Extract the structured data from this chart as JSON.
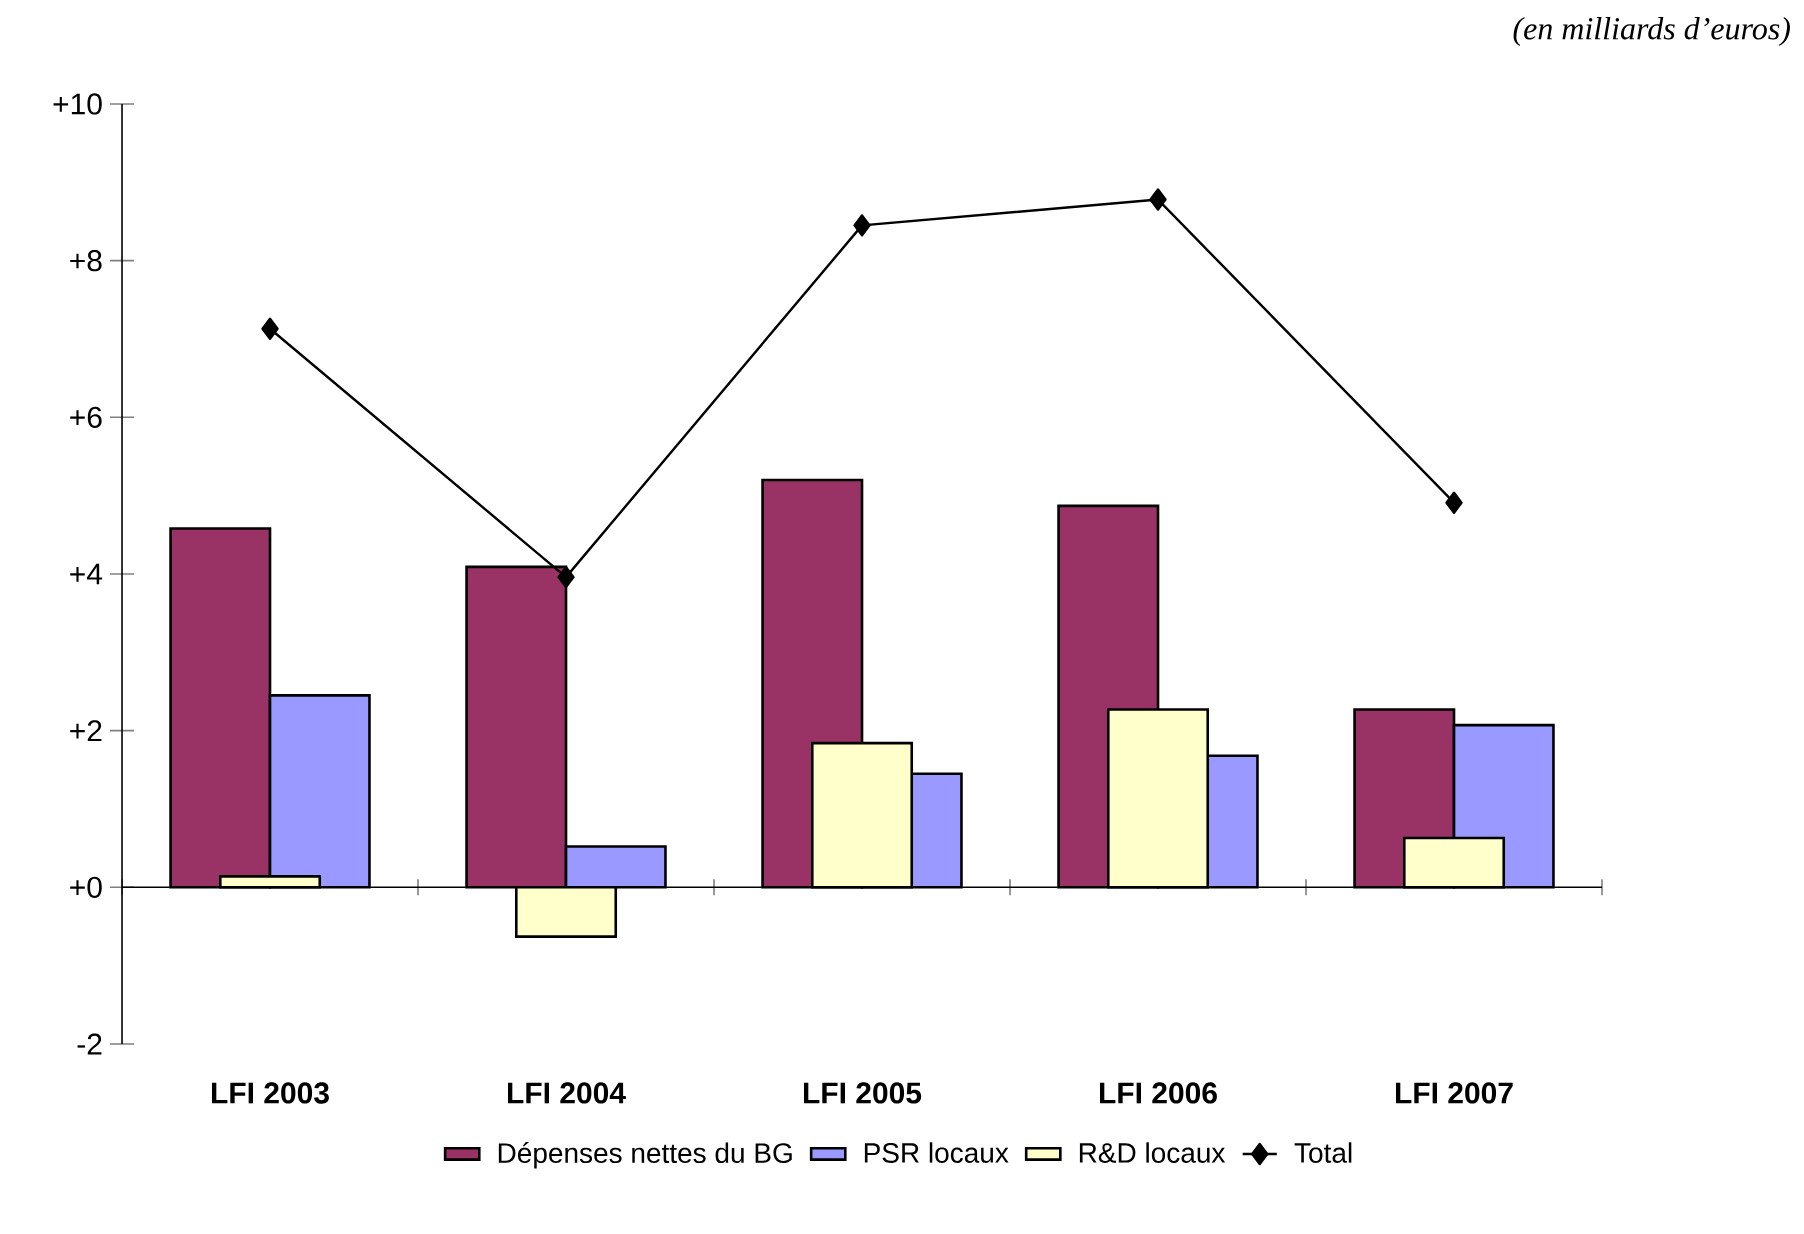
{
  "chart_data": {
    "type": "bar",
    "categories": [
      "LFI 2003",
      "LFI 2004",
      "LFI 2005",
      "LFI 2006",
      "LFI 2007"
    ],
    "series": [
      {
        "name": "Dépenses nettes du BG",
        "color": "#993366",
        "values": [
          4.58,
          4.09,
          5.2,
          4.87,
          2.27
        ]
      },
      {
        "name": "PSR locaux",
        "color": "#9999ff",
        "values": [
          2.45,
          0.52,
          1.45,
          1.68,
          2.07
        ]
      },
      {
        "name": "R&D locaux",
        "color": "#ffffcc",
        "values": [
          0.14,
          -0.63,
          1.84,
          2.27,
          0.63
        ]
      },
      {
        "name": "Total",
        "type": "line",
        "color": "#000000",
        "values": [
          7.13,
          3.96,
          8.45,
          8.78,
          4.91
        ]
      }
    ],
    "ylim": [
      -2,
      10
    ],
    "yticks": [
      {
        "value": -2,
        "label": "-2"
      },
      {
        "value": 0,
        "label": "+0"
      },
      {
        "value": 2,
        "label": "+2"
      },
      {
        "value": 4,
        "label": "+4"
      },
      {
        "value": 6,
        "label": "+6"
      },
      {
        "value": 8,
        "label": "+8"
      },
      {
        "value": 10,
        "label": "+10"
      }
    ],
    "marker": "diamond",
    "legend": "bottom",
    "annotations": [
      "(en milliards d’euros)"
    ]
  }
}
